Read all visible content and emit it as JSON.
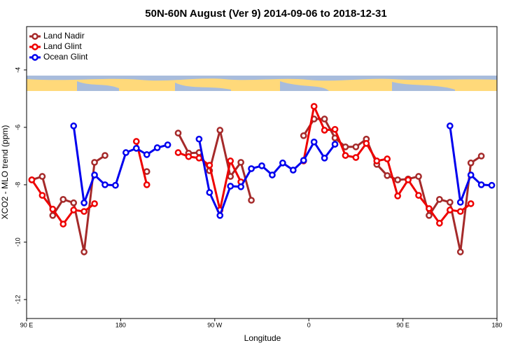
{
  "chart_data": {
    "type": "line",
    "title": "50N-60N August (Ver 9)   2014-09-06 to 2018-12-31",
    "x_label": "Longitude",
    "y_label": "XCO2 - MLO trend (ppm)",
    "x": [
      95,
      105,
      115,
      125,
      135,
      145,
      155,
      165,
      175,
      185,
      195,
      205,
      215,
      225,
      235,
      245,
      255,
      265,
      275,
      285,
      295,
      305,
      315,
      325,
      335,
      345,
      355,
      365,
      375,
      385,
      395,
      405,
      415,
      425,
      435,
      445,
      455,
      465,
      475,
      485,
      495,
      505,
      515,
      525,
      535
    ],
    "xlim": [
      90,
      540
    ],
    "xticks": [
      {
        "value": 90,
        "label": "90 E"
      },
      180,
      {
        "value": 270,
        "label": "90 W"
      },
      {
        "value": 360,
        "label": "0"
      },
      {
        "value": 450,
        "label": "90 E"
      },
      {
        "value": 540,
        "label": "180"
      }
    ],
    "ylim": [
      -12.66,
      -2.49
    ],
    "yticks": [
      -4,
      -6,
      -8,
      -10,
      -12
    ],
    "legend": "top-left",
    "series": [
      {
        "name": "Land Nadir",
        "color": "#a52a2a",
        "values": [
          -7.83,
          -7.71,
          -9.07,
          -8.51,
          -8.63,
          -10.34,
          -7.22,
          -6.98,
          null,
          null,
          null,
          -7.54,
          null,
          null,
          -6.2,
          -6.9,
          -6.88,
          -7.51,
          -6.1,
          -7.71,
          -7.22,
          -8.54,
          null,
          null,
          null,
          null,
          -6.29,
          -5.71,
          -5.71,
          -6.37,
          -6.68,
          -6.68,
          -6.41,
          -7.29,
          -7.68,
          -7.83,
          -7.8,
          -7.71,
          -9.07,
          -8.51,
          -8.61,
          -10.34,
          -7.24,
          -7.0,
          null
        ]
      },
      {
        "name": "Land Glint",
        "color": "#ee0000",
        "values": [
          -7.83,
          -8.37,
          -8.85,
          -9.37,
          -8.88,
          -8.93,
          -8.66,
          null,
          null,
          null,
          -6.49,
          -8.0,
          null,
          null,
          -6.88,
          -7.02,
          -7.07,
          -7.32,
          -8.88,
          -7.17,
          -7.9,
          null,
          null,
          null,
          null,
          null,
          -7.17,
          -5.27,
          -6.1,
          -6.07,
          -6.98,
          -7.05,
          -6.56,
          -7.17,
          -7.1,
          -8.39,
          -7.83,
          -8.37,
          -8.83,
          -9.34,
          -8.88,
          -8.93,
          -8.66,
          null,
          null
        ]
      },
      {
        "name": "Ocean Glint",
        "color": "#0000ee",
        "values": [
          null,
          null,
          null,
          null,
          -5.95,
          -8.63,
          -7.66,
          -8.0,
          -8.02,
          -6.88,
          -6.73,
          -6.95,
          -6.71,
          -6.61,
          null,
          null,
          -6.41,
          -8.27,
          -9.07,
          -8.05,
          -8.07,
          -7.44,
          -7.34,
          -7.66,
          -7.24,
          -7.49,
          -7.15,
          -6.51,
          -7.07,
          -6.59,
          null,
          null,
          null,
          null,
          null,
          null,
          null,
          null,
          null,
          null,
          -5.95,
          -8.61,
          -7.66,
          -8.0,
          -8.02
        ]
      }
    ]
  }
}
